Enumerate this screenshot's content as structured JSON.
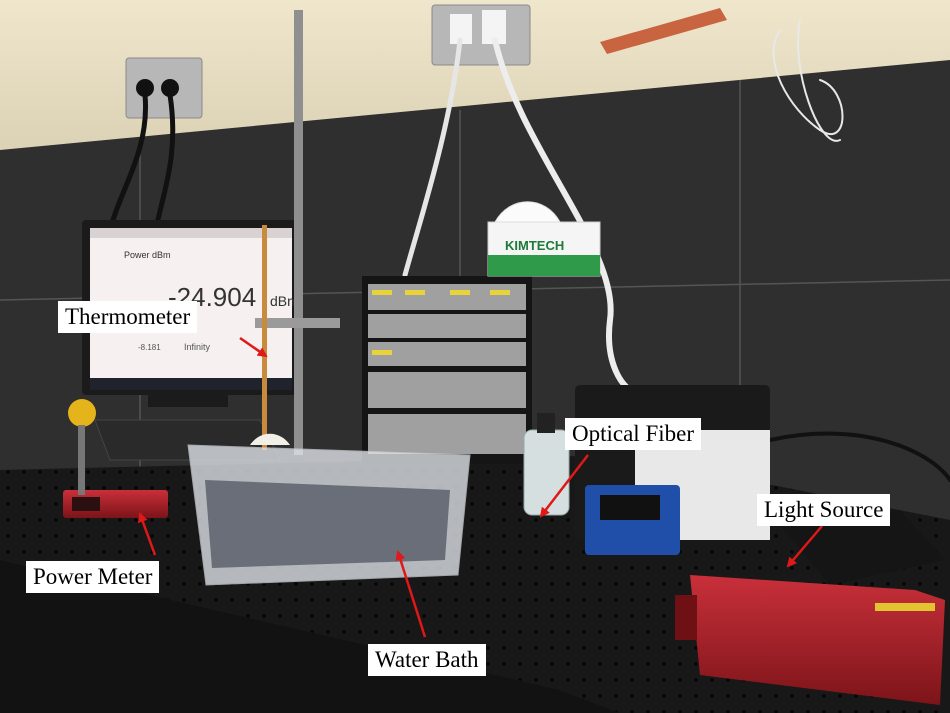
{
  "labels": {
    "thermometer": "Thermometer",
    "optical_fiber": "Optical Fiber",
    "light_source": "Light Source",
    "power_meter": "Power Meter",
    "water_bath": "Water Bath"
  },
  "monitor": {
    "title": "Power dBm",
    "reading": "-24.904",
    "unit": "dBm",
    "sub_left": "-8.181",
    "sub_mid": "Infinity"
  },
  "kimtech_box": {
    "brand": "KIMTECH"
  },
  "colors": {
    "annotation_arrow": "#e01818",
    "light_source_body": "#b0212c",
    "power_meter_body": "#c0252a",
    "wall_tile": "#2e2e2e",
    "wall_upper": "#e7ddc2"
  }
}
